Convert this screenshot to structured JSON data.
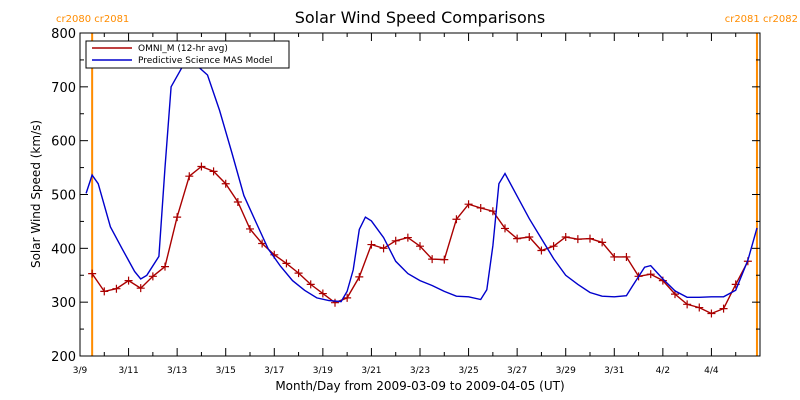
{
  "chart_data": {
    "type": "line",
    "title": "Solar Wind Speed Comparisons",
    "xlabel": "Month/Day from 2009-03-09 to 2009-04-05 (UT)",
    "ylabel": "Solar Wind Speed (km/s)",
    "xlim": [
      "2009-03-09",
      "2009-04-06"
    ],
    "ylim": [
      200,
      800
    ],
    "yticks": [
      200,
      300,
      400,
      500,
      600,
      700,
      800
    ],
    "xticks": [
      {
        "date": "2009-03-09",
        "label": "3/9"
      },
      {
        "date": "2009-03-11",
        "label": "3/11"
      },
      {
        "date": "2009-03-13",
        "label": "3/13"
      },
      {
        "date": "2009-03-15",
        "label": "3/15"
      },
      {
        "date": "2009-03-17",
        "label": "3/17"
      },
      {
        "date": "2009-03-19",
        "label": "3/19"
      },
      {
        "date": "2009-03-21",
        "label": "3/21"
      },
      {
        "date": "2009-03-23",
        "label": "3/23"
      },
      {
        "date": "2009-03-25",
        "label": "3/25"
      },
      {
        "date": "2009-03-27",
        "label": "3/27"
      },
      {
        "date": "2009-03-29",
        "label": "3/29"
      },
      {
        "date": "2009-03-31",
        "label": "3/31"
      },
      {
        "date": "2009-04-02",
        "label": "4/2"
      },
      {
        "date": "2009-04-04",
        "label": "4/4"
      }
    ],
    "legend_position": "top-left",
    "rotation_markers": [
      {
        "date": "2009-03-09 12:00",
        "color": "#ff8c00",
        "labels": [
          "cr2080",
          "cr2081"
        ],
        "label_position": "left"
      },
      {
        "date": "2009-04-05 21:00",
        "color": "#ff8c00",
        "labels": [
          "cr2081",
          "cr2082"
        ],
        "label_position": "right"
      }
    ],
    "series": [
      {
        "name": "OMNI_M (12-hr avg)",
        "color": "#aa0000",
        "marker": "plus",
        "points": [
          [
            "2009-03-09 12:00",
            353
          ],
          [
            "2009-03-10 00:00",
            320
          ],
          [
            "2009-03-10 12:00",
            325
          ],
          [
            "2009-03-11 00:00",
            340
          ],
          [
            "2009-03-11 12:00",
            326
          ],
          [
            "2009-03-12 00:00",
            348
          ],
          [
            "2009-03-12 12:00",
            366
          ],
          [
            "2009-03-13 00:00",
            458
          ],
          [
            "2009-03-13 12:00",
            534
          ],
          [
            "2009-03-14 00:00",
            552
          ],
          [
            "2009-03-14 12:00",
            543
          ],
          [
            "2009-03-15 00:00",
            520
          ],
          [
            "2009-03-15 12:00",
            486
          ],
          [
            "2009-03-16 00:00",
            436
          ],
          [
            "2009-03-16 12:00",
            409
          ],
          [
            "2009-03-17 00:00",
            388
          ],
          [
            "2009-03-17 12:00",
            372
          ],
          [
            "2009-03-18 00:00",
            354
          ],
          [
            "2009-03-18 12:00",
            333
          ],
          [
            "2009-03-19 00:00",
            316
          ],
          [
            "2009-03-19 12:00",
            299
          ],
          [
            "2009-03-20 00:00",
            308
          ],
          [
            "2009-03-20 12:00",
            347
          ],
          [
            "2009-03-21 00:00",
            407
          ],
          [
            "2009-03-21 12:00",
            400
          ],
          [
            "2009-03-22 00:00",
            414
          ],
          [
            "2009-03-22 12:00",
            420
          ],
          [
            "2009-03-23 00:00",
            404
          ],
          [
            "2009-03-23 12:00",
            380
          ],
          [
            "2009-03-24 00:00",
            379
          ],
          [
            "2009-03-24 12:00",
            454
          ],
          [
            "2009-03-25 00:00",
            482
          ],
          [
            "2009-03-25 12:00",
            475
          ],
          [
            "2009-03-26 00:00",
            469
          ],
          [
            "2009-03-26 12:00",
            437
          ],
          [
            "2009-03-27 00:00",
            418
          ],
          [
            "2009-03-27 12:00",
            421
          ],
          [
            "2009-03-28 00:00",
            396
          ],
          [
            "2009-03-28 12:00",
            404
          ],
          [
            "2009-03-29 00:00",
            421
          ],
          [
            "2009-03-29 12:00",
            417
          ],
          [
            "2009-03-30 00:00",
            418
          ],
          [
            "2009-03-30 12:00",
            411
          ],
          [
            "2009-03-31 00:00",
            384
          ],
          [
            "2009-03-31 12:00",
            384
          ],
          [
            "2009-04-01 00:00",
            348
          ],
          [
            "2009-04-01 12:00",
            352
          ],
          [
            "2009-04-02 00:00",
            340
          ],
          [
            "2009-04-02 12:00",
            315
          ],
          [
            "2009-04-03 00:00",
            296
          ],
          [
            "2009-04-03 12:00",
            290
          ],
          [
            "2009-04-04 00:00",
            279
          ],
          [
            "2009-04-04 12:00",
            288
          ],
          [
            "2009-04-05 00:00",
            333
          ],
          [
            "2009-04-05 12:00",
            376
          ]
        ]
      },
      {
        "name": "Predictive Science MAS Model",
        "color": "#0000cc",
        "marker": "none",
        "points": [
          [
            "2009-03-09 06:00",
            502
          ],
          [
            "2009-03-09 12:00",
            536
          ],
          [
            "2009-03-09 18:00",
            520
          ],
          [
            "2009-03-10 06:00",
            440
          ],
          [
            "2009-03-10 18:00",
            398
          ],
          [
            "2009-03-11 06:00",
            357
          ],
          [
            "2009-03-11 12:00",
            343
          ],
          [
            "2009-03-11 18:00",
            350
          ],
          [
            "2009-03-12 06:00",
            385
          ],
          [
            "2009-03-12 12:00",
            550
          ],
          [
            "2009-03-12 18:00",
            700
          ],
          [
            "2009-03-13 06:00",
            740
          ],
          [
            "2009-03-13 18:00",
            742
          ],
          [
            "2009-03-14 06:00",
            722
          ],
          [
            "2009-03-14 18:00",
            656
          ],
          [
            "2009-03-15 06:00",
            578
          ],
          [
            "2009-03-15 18:00",
            498
          ],
          [
            "2009-03-16 06:00",
            448
          ],
          [
            "2009-03-16 18:00",
            399
          ],
          [
            "2009-03-17 06:00",
            367
          ],
          [
            "2009-03-17 18:00",
            340
          ],
          [
            "2009-03-18 06:00",
            322
          ],
          [
            "2009-03-18 18:00",
            308
          ],
          [
            "2009-03-19 06:00",
            303
          ],
          [
            "2009-03-19 18:00",
            301
          ],
          [
            "2009-03-20 00:00",
            320
          ],
          [
            "2009-03-20 06:00",
            360
          ],
          [
            "2009-03-20 12:00",
            435
          ],
          [
            "2009-03-20 18:00",
            458
          ],
          [
            "2009-03-21 00:00",
            451
          ],
          [
            "2009-03-21 12:00",
            420
          ],
          [
            "2009-03-22 00:00",
            376
          ],
          [
            "2009-03-22 12:00",
            353
          ],
          [
            "2009-03-23 00:00",
            340
          ],
          [
            "2009-03-23 12:00",
            331
          ],
          [
            "2009-03-24 00:00",
            320
          ],
          [
            "2009-03-24 12:00",
            311
          ],
          [
            "2009-03-25 00:00",
            310
          ],
          [
            "2009-03-25 12:00",
            305
          ],
          [
            "2009-03-25 18:00",
            323
          ],
          [
            "2009-03-26 00:00",
            405
          ],
          [
            "2009-03-26 06:00",
            520
          ],
          [
            "2009-03-26 12:00",
            539
          ],
          [
            "2009-03-27 00:00",
            497
          ],
          [
            "2009-03-27 12:00",
            455
          ],
          [
            "2009-03-28 00:00",
            418
          ],
          [
            "2009-03-28 12:00",
            381
          ],
          [
            "2009-03-29 00:00",
            350
          ],
          [
            "2009-03-29 12:00",
            333
          ],
          [
            "2009-03-30 00:00",
            318
          ],
          [
            "2009-03-30 12:00",
            311
          ],
          [
            "2009-03-31 00:00",
            310
          ],
          [
            "2009-03-31 12:00",
            312
          ],
          [
            "2009-03-31 18:00",
            330
          ],
          [
            "2009-04-01 06:00",
            365
          ],
          [
            "2009-04-01 12:00",
            368
          ],
          [
            "2009-04-02 00:00",
            343
          ],
          [
            "2009-04-02 12:00",
            321
          ],
          [
            "2009-04-03 00:00",
            309
          ],
          [
            "2009-04-03 12:00",
            309
          ],
          [
            "2009-04-04 00:00",
            310
          ],
          [
            "2009-04-04 12:00",
            310
          ],
          [
            "2009-04-05 00:00",
            322
          ],
          [
            "2009-04-05 12:00",
            378
          ],
          [
            "2009-04-05 21:00",
            438
          ]
        ]
      }
    ]
  }
}
